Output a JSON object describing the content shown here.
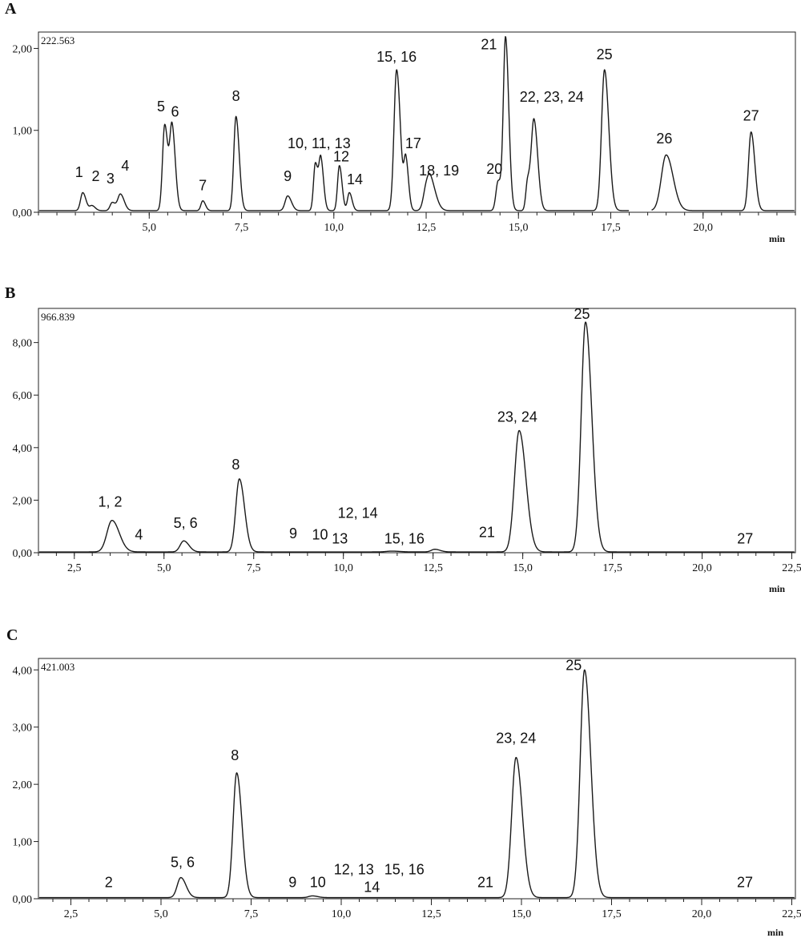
{
  "chart_data": [
    {
      "type": "line",
      "panel_label": "A",
      "scale_label": "222.563",
      "x_unit": "min",
      "xlim": [
        2.0,
        22.5
      ],
      "ylim": [
        0,
        2.2
      ],
      "x_ticks": [
        5.0,
        7.5,
        10.0,
        12.5,
        15.0,
        17.5,
        20.0
      ],
      "x_tick_labels": [
        "5,0",
        "7,5",
        "10,0",
        "12,5",
        "15,0",
        "17,5",
        "20,0"
      ],
      "y_ticks": [
        0,
        1,
        2
      ],
      "y_tick_labels": [
        "0,00",
        "1,00",
        "2,00"
      ],
      "baseline": 0.02,
      "gap": [
        18.0,
        18.6
      ],
      "peaks": [
        {
          "rt": 3.2,
          "height": 0.22,
          "width": 0.06
        },
        {
          "rt": 3.45,
          "height": 0.06,
          "width": 0.06
        },
        {
          "rt": 4.0,
          "height": 0.1,
          "width": 0.06
        },
        {
          "rt": 4.22,
          "height": 0.2,
          "width": 0.07
        },
        {
          "rt": 5.42,
          "height": 1.05,
          "width": 0.06
        },
        {
          "rt": 5.62,
          "height": 1.0,
          "width": 0.06
        },
        {
          "rt": 6.45,
          "height": 0.12,
          "width": 0.05
        },
        {
          "rt": 7.35,
          "height": 1.15,
          "width": 0.06
        },
        {
          "rt": 8.75,
          "height": 0.18,
          "width": 0.07
        },
        {
          "rt": 9.5,
          "height": 0.58,
          "width": 0.05
        },
        {
          "rt": 9.65,
          "height": 0.6,
          "width": 0.05
        },
        {
          "rt": 10.15,
          "height": 0.55,
          "width": 0.05
        },
        {
          "rt": 10.42,
          "height": 0.22,
          "width": 0.05
        },
        {
          "rt": 11.7,
          "height": 1.72,
          "width": 0.07
        },
        {
          "rt": 11.95,
          "height": 0.6,
          "width": 0.05
        },
        {
          "rt": 12.5,
          "height": 0.2,
          "width": 0.08
        },
        {
          "rt": 12.62,
          "height": 0.32,
          "width": 0.1
        },
        {
          "rt": 14.45,
          "height": 0.36,
          "width": 0.06
        },
        {
          "rt": 14.65,
          "height": 2.1,
          "width": 0.06
        },
        {
          "rt": 15.25,
          "height": 0.36,
          "width": 0.05
        },
        {
          "rt": 15.42,
          "height": 1.1,
          "width": 0.07
        },
        {
          "rt": 17.33,
          "height": 1.72,
          "width": 0.08
        },
        {
          "rt": 19.0,
          "height": 0.68,
          "width": 0.13
        },
        {
          "rt": 21.3,
          "height": 0.96,
          "width": 0.07
        }
      ],
      "peak_labels": [
        {
          "text": "1",
          "rt": 3.1,
          "y": 0.43
        },
        {
          "text": "2",
          "rt": 3.55,
          "y": 0.38
        },
        {
          "text": "3",
          "rt": 3.95,
          "y": 0.35
        },
        {
          "text": "4",
          "rt": 4.35,
          "y": 0.51
        },
        {
          "text": "5",
          "rt": 5.32,
          "y": 1.23
        },
        {
          "text": "6",
          "rt": 5.7,
          "y": 1.17
        },
        {
          "text": "7",
          "rt": 6.45,
          "y": 0.27
        },
        {
          "text": "8",
          "rt": 7.35,
          "y": 1.36
        },
        {
          "text": "9",
          "rt": 8.75,
          "y": 0.38
        },
        {
          "text": "10, 11, 13",
          "rt": 9.6,
          "y": 0.78
        },
        {
          "text": "12",
          "rt": 10.2,
          "y": 0.62
        },
        {
          "text": "14",
          "rt": 10.57,
          "y": 0.34
        },
        {
          "text": "15, 16",
          "rt": 11.7,
          "y": 1.84
        },
        {
          "text": "17",
          "rt": 12.15,
          "y": 0.78
        },
        {
          "text": "18, 19",
          "rt": 12.85,
          "y": 0.45
        },
        {
          "text": "20",
          "rt": 14.35,
          "y": 0.47
        },
        {
          "text": "21",
          "rt": 14.2,
          "y": 1.99
        },
        {
          "text": "22, 23, 24",
          "rt": 15.9,
          "y": 1.35
        },
        {
          "text": "25",
          "rt": 17.33,
          "y": 1.87
        },
        {
          "text": "26",
          "rt": 18.95,
          "y": 0.84
        },
        {
          "text": "27",
          "rt": 21.3,
          "y": 1.12
        }
      ]
    },
    {
      "type": "line",
      "panel_label": "B",
      "scale_label": "966.839",
      "x_unit": "min",
      "xlim": [
        1.5,
        22.6
      ],
      "ylim": [
        0,
        9.3
      ],
      "x_ticks": [
        2.5,
        5.0,
        7.5,
        10.0,
        12.5,
        15.0,
        17.5,
        20.0,
        22.5
      ],
      "x_tick_labels": [
        "2,5",
        "5,0",
        "7,5",
        "10,0",
        "12,5",
        "15,0",
        "17,5",
        "20,0",
        "22,5"
      ],
      "y_ticks": [
        0,
        2,
        4,
        6,
        8
      ],
      "y_tick_labels": [
        "0,00",
        "2,00",
        "4,00",
        "6,00",
        "8,00"
      ],
      "baseline": 0.03,
      "peaks": [
        {
          "rt": 3.55,
          "height": 1.2,
          "width": 0.14
        },
        {
          "rt": 5.55,
          "height": 0.42,
          "width": 0.1
        },
        {
          "rt": 7.1,
          "height": 2.78,
          "width": 0.1
        },
        {
          "rt": 11.35,
          "height": 0.03,
          "width": 0.15
        },
        {
          "rt": 12.55,
          "height": 0.1,
          "width": 0.1
        },
        {
          "rt": 14.9,
          "height": 4.62,
          "width": 0.13
        },
        {
          "rt": 16.75,
          "height": 8.75,
          "width": 0.12
        }
      ],
      "peak_labels": [
        {
          "text": "1, 2",
          "rt": 3.5,
          "y": 1.75
        },
        {
          "text": "4",
          "rt": 4.3,
          "y": 0.5
        },
        {
          "text": "5, 6",
          "rt": 5.6,
          "y": 0.95
        },
        {
          "text": "8",
          "rt": 7.0,
          "y": 3.17
        },
        {
          "text": "9",
          "rt": 8.6,
          "y": 0.55
        },
        {
          "text": "10",
          "rt": 9.35,
          "y": 0.5
        },
        {
          "text": "13",
          "rt": 9.9,
          "y": 0.35
        },
        {
          "text": "12, 14",
          "rt": 10.4,
          "y": 1.32
        },
        {
          "text": "15, 16",
          "rt": 11.7,
          "y": 0.35
        },
        {
          "text": "21",
          "rt": 14.0,
          "y": 0.6
        },
        {
          "text": "23, 24",
          "rt": 14.85,
          "y": 4.98
        },
        {
          "text": "25",
          "rt": 16.65,
          "y": 8.9
        },
        {
          "text": "27",
          "rt": 21.2,
          "y": 0.35
        }
      ]
    },
    {
      "type": "line",
      "panel_label": "C",
      "scale_label": "421.003",
      "x_unit": "min",
      "xlim": [
        1.6,
        22.6
      ],
      "ylim": [
        0,
        4.2
      ],
      "x_ticks": [
        2.5,
        5.0,
        7.5,
        10.0,
        12.5,
        15.0,
        17.5,
        20.0,
        22.5
      ],
      "x_tick_labels": [
        "2,5",
        "5,0",
        "7,5",
        "10,0",
        "12,5",
        "15,0",
        "17,5",
        "20,0",
        "22,5"
      ],
      "y_ticks": [
        0,
        1,
        2,
        3,
        4
      ],
      "y_tick_labels": [
        "0,00",
        "1,00",
        "2,00",
        "3,00",
        "4,00"
      ],
      "baseline": 0.02,
      "peaks": [
        {
          "rt": 5.55,
          "height": 0.35,
          "width": 0.1
        },
        {
          "rt": 7.1,
          "height": 2.18,
          "width": 0.1
        },
        {
          "rt": 9.2,
          "height": 0.03,
          "width": 0.1
        },
        {
          "rt": 14.85,
          "height": 2.45,
          "width": 0.12
        },
        {
          "rt": 16.75,
          "height": 3.98,
          "width": 0.12
        }
      ],
      "peak_labels": [
        {
          "text": "2",
          "rt": 3.55,
          "y": 0.2
        },
        {
          "text": "5, 6",
          "rt": 5.6,
          "y": 0.55
        },
        {
          "text": "8",
          "rt": 7.05,
          "y": 2.42
        },
        {
          "text": "9",
          "rt": 8.65,
          "y": 0.2
        },
        {
          "text": "10",
          "rt": 9.35,
          "y": 0.2
        },
        {
          "text": "12, 13",
          "rt": 10.35,
          "y": 0.43
        },
        {
          "text": "14",
          "rt": 10.85,
          "y": 0.12
        },
        {
          "text": "15, 16",
          "rt": 11.75,
          "y": 0.43
        },
        {
          "text": "21",
          "rt": 14.0,
          "y": 0.2
        },
        {
          "text": "23, 24",
          "rt": 14.85,
          "y": 2.72
        },
        {
          "text": "25",
          "rt": 16.45,
          "y": 4.0
        },
        {
          "text": "27",
          "rt": 21.2,
          "y": 0.2
        }
      ]
    }
  ]
}
